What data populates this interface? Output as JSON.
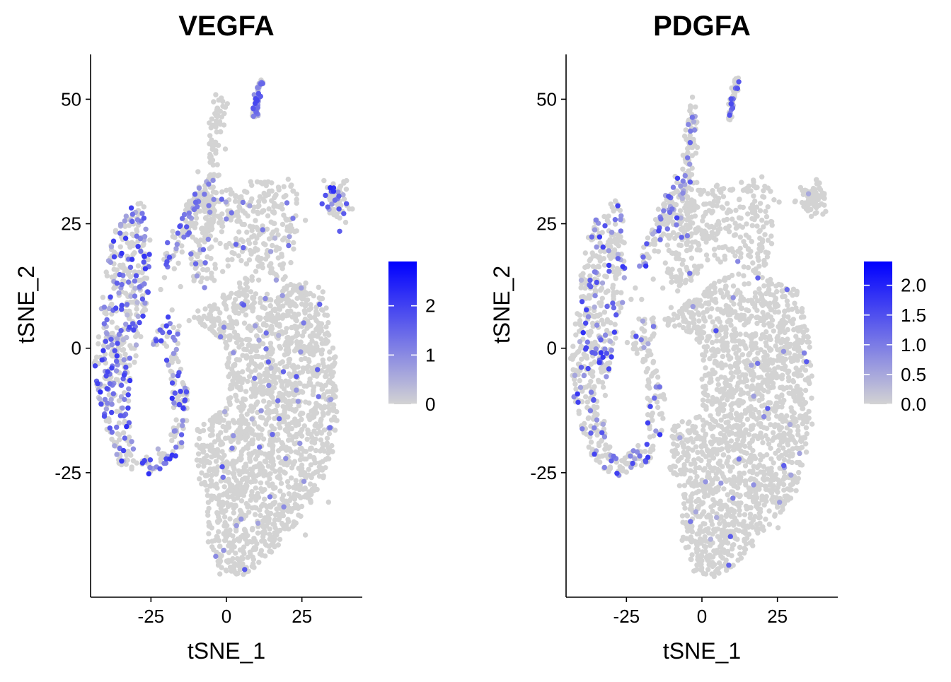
{
  "chart_data": [
    {
      "type": "scatter",
      "title": "VEGFA",
      "xlabel": "tSNE_1",
      "ylabel": "tSNE_2",
      "xlim": [
        -45,
        45
      ],
      "ylim": [
        -50,
        59
      ],
      "x_ticks": [
        -25,
        0,
        25
      ],
      "x_tick_labels": [
        "-25",
        "0",
        "25"
      ],
      "y_ticks": [
        -25,
        0,
        25,
        50
      ],
      "y_tick_labels": [
        "-25",
        "0",
        "25",
        "50"
      ],
      "grid": false,
      "legend": {
        "placement": "right",
        "type": "colorbar",
        "min": 0,
        "max": 2.9,
        "low_color": "#d3d3d3",
        "high_color": "#0000ff",
        "ticks": [
          0,
          1,
          2
        ],
        "tick_labels": [
          "0",
          "1",
          "2"
        ]
      },
      "expression_enriched_regions": [
        "left cluster",
        "lower-left ring",
        "top spike",
        "right islet"
      ],
      "seed": 11
    },
    {
      "type": "scatter",
      "title": "PDGFA",
      "xlabel": "tSNE_1",
      "ylabel": "tSNE_2",
      "xlim": [
        -45,
        45
      ],
      "ylim": [
        -50,
        59
      ],
      "x_ticks": [
        -25,
        0,
        25
      ],
      "x_tick_labels": [
        "-25",
        "0",
        "25"
      ],
      "y_ticks": [
        -25,
        0,
        25,
        50
      ],
      "y_tick_labels": [
        "-25",
        "0",
        "25",
        "50"
      ],
      "grid": false,
      "legend": {
        "placement": "right",
        "type": "colorbar",
        "min": 0,
        "max": 2.4,
        "low_color": "#d3d3d3",
        "high_color": "#0000ff",
        "ticks": [
          0,
          0.5,
          1.0,
          1.5,
          2.0
        ],
        "tick_labels": [
          "0.0",
          "0.5",
          "1.0",
          "1.5",
          "2.0"
        ]
      },
      "expression_enriched_regions": [
        "lower-left ring",
        "upper diagonal strand",
        "left cluster"
      ],
      "seed": 23
    }
  ]
}
